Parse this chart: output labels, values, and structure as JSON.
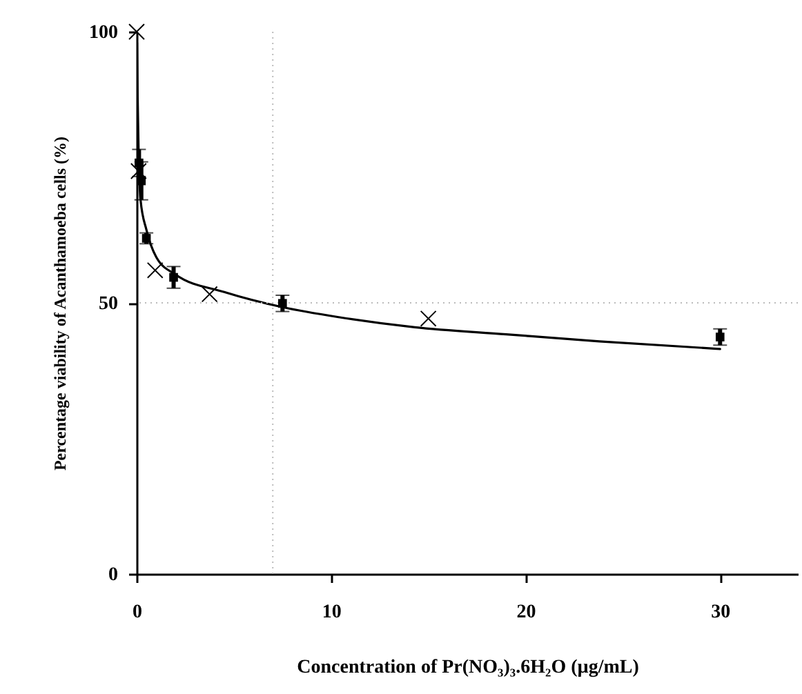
{
  "chart_data": {
    "type": "scatter",
    "xlabel": "Concentration of Pr(NO₃)₃.6H₂O (µg/mL)",
    "ylabel": "Percentage viability of Acanthamoeba cells (%)",
    "xlim": [
      0,
      34
    ],
    "ylim": [
      0,
      100
    ],
    "xticks": [
      0,
      10,
      20,
      30
    ],
    "yticks": [
      0,
      50,
      100
    ],
    "grid": false,
    "series": [
      {
        "type": "line",
        "color": "#000000",
        "marker": "none",
        "line_style": "solid",
        "x": [
          0.02,
          0.05,
          0.1,
          0.2,
          0.5,
          1,
          2,
          4.5,
          7.5,
          10.5,
          14.3,
          19,
          23.8,
          30
        ],
        "values": [
          98,
          88,
          78,
          69,
          63.5,
          58.5,
          55.2,
          52,
          49.2,
          47.3,
          45.5,
          44.2,
          42.9,
          41.5
        ]
      },
      {
        "color": "#000000",
        "marker": "square",
        "x": [
          0.12,
          0.24,
          0.5,
          1.9,
          7.5,
          30
        ],
        "values": [
          75.8,
          72.5,
          61.9,
          54.7,
          49.9,
          43.7
        ],
        "errors": [
          2.5,
          3.5,
          1,
          2,
          1.5,
          1.5
        ]
      },
      {
        "color": "#000000",
        "marker": "cross",
        "x": [
          0,
          0.1,
          0.95,
          3.75,
          15
        ],
        "values": [
          100,
          74.3,
          56,
          51.6,
          47.1
        ]
      }
    ],
    "ref_lines": [
      {
        "axis": "x",
        "value": 7,
        "color": "#bbbbbb",
        "line_style": "dotted"
      },
      {
        "axis": "y",
        "value": 50,
        "color": "#bbbbbb",
        "line_style": "dotted"
      }
    ]
  }
}
